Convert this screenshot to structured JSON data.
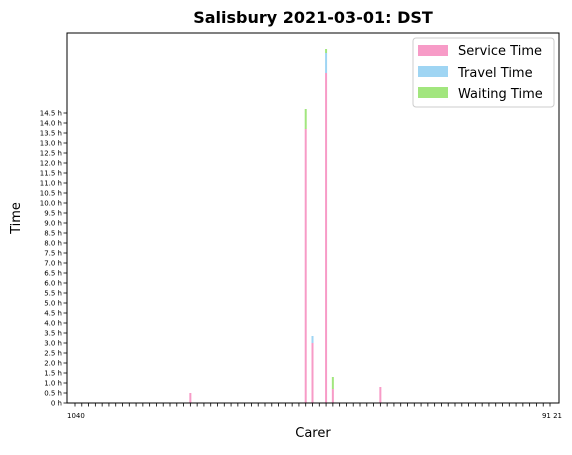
{
  "chart_data": {
    "type": "bar",
    "stacked": true,
    "title": "Salisbury 2021-03-01: DST",
    "xlabel": "Carer",
    "ylabel": "Time",
    "ylim": [
      0,
      18.5
    ],
    "yticks": [
      0,
      0.5,
      1,
      1.5,
      2,
      2.5,
      3,
      3.5,
      4,
      4.5,
      5,
      5.5,
      6,
      6.5,
      7,
      7.5,
      8,
      8.5,
      9,
      9.5,
      10,
      10.5,
      11,
      11.5,
      12,
      12.5,
      13,
      13.5,
      14,
      14.5
    ],
    "ytick_labels": [
      "0 h",
      "0.5 h",
      "1.0 h",
      "1.5 h",
      "2.0 h",
      "2.5 h",
      "3.0 h",
      "3.5 h",
      "4.0 h",
      "4.5 h",
      "5.0 h",
      "5.5 h",
      "6.0 h",
      "6.5 h",
      "7.0 h",
      "7.5 h",
      "8.0 h",
      "8.5 h",
      "9.0 h",
      "9.5 h",
      "10.0 h",
      "10.5 h",
      "11.0 h",
      "11.5 h",
      "12.0 h",
      "12.5 h",
      "13.0 h",
      "13.5 h",
      "14.0 h",
      "14.5 h"
    ],
    "x_first_tick_label": "1040",
    "x_last_tick_label": "91 21",
    "category_count": 71,
    "legend_position": "top-right",
    "grid": false,
    "colors": {
      "service": "#f79bc7",
      "travel": "#9fd5f3",
      "waiting": "#a2e67e"
    },
    "series": [
      {
        "name": "Service Time",
        "values": {
          "17": 0.5,
          "34": 13.7,
          "35": 3.0,
          "37": 16.5,
          "38": 0.7,
          "45": 0.8
        }
      },
      {
        "name": "Travel Time",
        "values": {
          "35": 0.35,
          "37": 1.0
        }
      },
      {
        "name": "Waiting Time",
        "values": {
          "34": 1.0,
          "37": 0.2,
          "38": 0.6
        }
      }
    ]
  }
}
